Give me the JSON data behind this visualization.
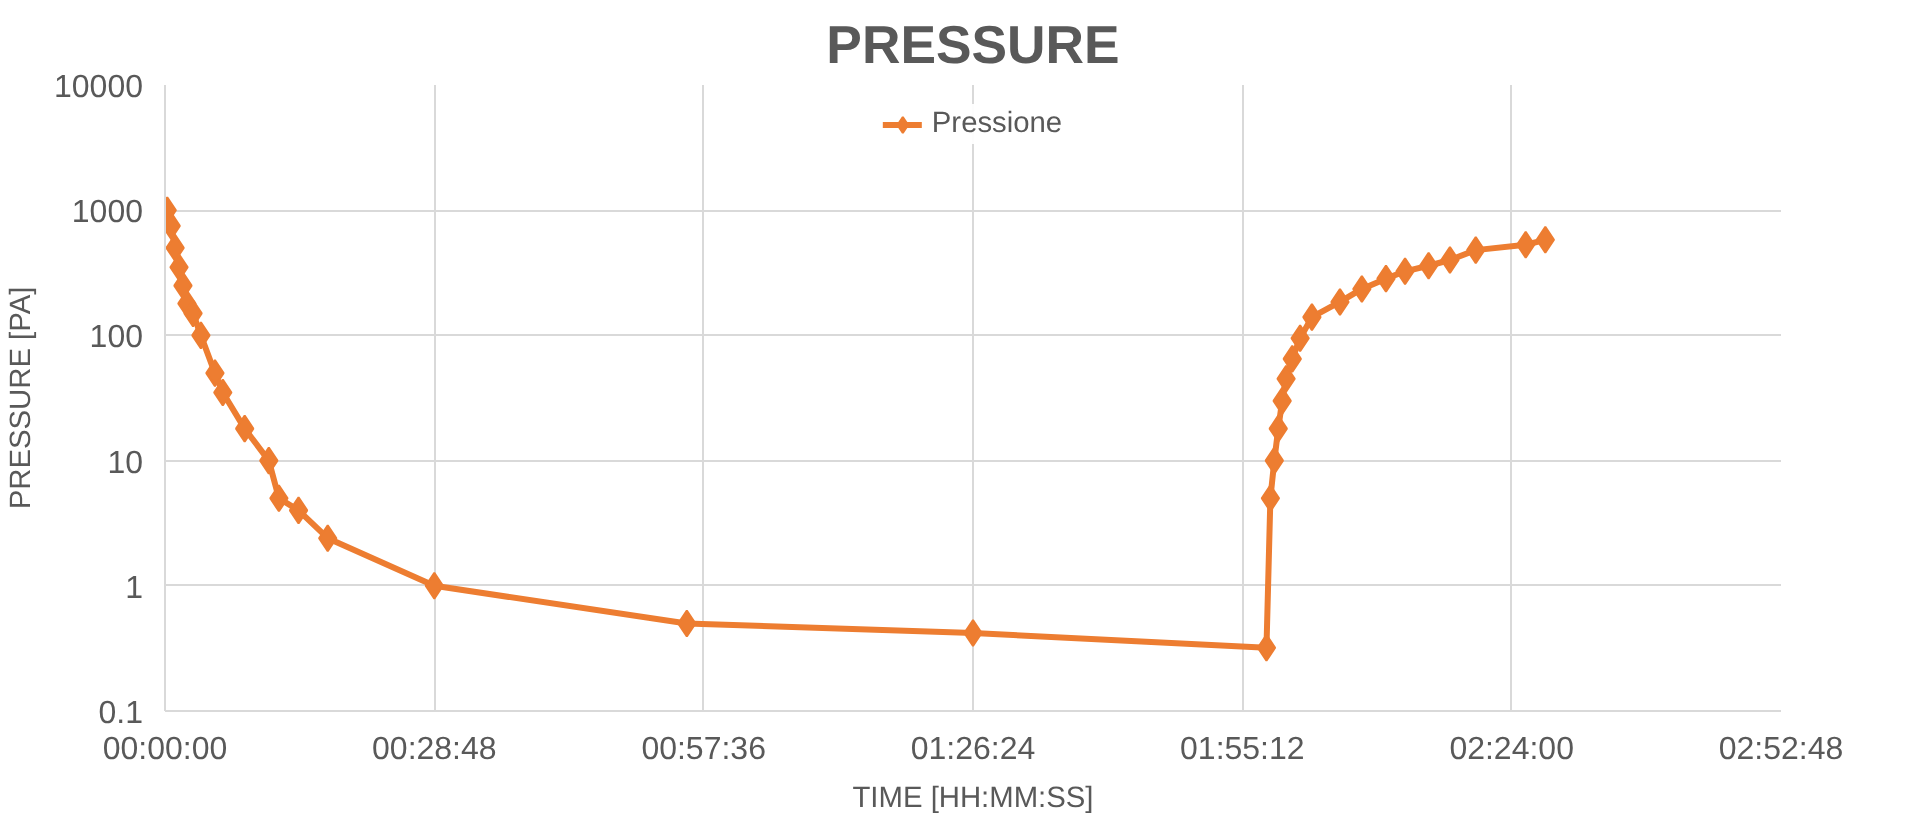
{
  "chart_data": {
    "type": "line",
    "title": "PRESSURE",
    "xlabel": "TIME [HH:MM:SS]",
    "ylabel": "PRESSURE [PA]",
    "log": "y",
    "grid": true,
    "legend": "top",
    "marker": "diamond",
    "line_style": "solid",
    "xlim": [
      0,
      2.88
    ],
    "xticks": [
      {
        "value": 0,
        "label": "00:00:00"
      },
      {
        "value": 0.48,
        "label": "00:28:48"
      },
      {
        "value": 0.96,
        "label": "00:57:36"
      },
      {
        "value": 1.44,
        "label": "01:26:24"
      },
      {
        "value": 1.92,
        "label": "01:55:12"
      },
      {
        "value": 2.4,
        "label": "02:24:00"
      },
      {
        "value": 2.88,
        "label": "02:52:48"
      }
    ],
    "ylim": [
      0.1,
      10000
    ],
    "yticks": [
      0.1,
      1,
      10,
      100,
      1000,
      10000
    ],
    "series": [
      {
        "name": "Pressione",
        "color": "#ed7d31",
        "x": [
          0.004,
          0.011,
          0.018,
          0.025,
          0.032,
          0.039,
          0.05,
          0.064,
          0.089,
          0.103,
          0.142,
          0.185,
          0.203,
          0.238,
          0.29,
          0.48,
          0.93,
          1.44,
          1.963,
          1.97,
          1.977,
          1.984,
          1.991,
          1.998,
          2.009,
          2.023,
          2.044,
          2.094,
          2.133,
          2.176,
          2.21,
          2.252,
          2.29,
          2.336,
          2.425,
          2.46
        ],
        "values": [
          1000,
          750,
          500,
          350,
          250,
          180,
          150,
          100,
          50,
          35,
          18,
          10,
          5,
          4,
          2.4,
          1,
          0.5,
          0.42,
          0.32,
          5,
          10,
          18,
          30,
          45,
          65,
          95,
          140,
          185,
          235,
          284,
          325,
          360,
          400,
          480,
          530,
          580
        ]
      }
    ]
  }
}
